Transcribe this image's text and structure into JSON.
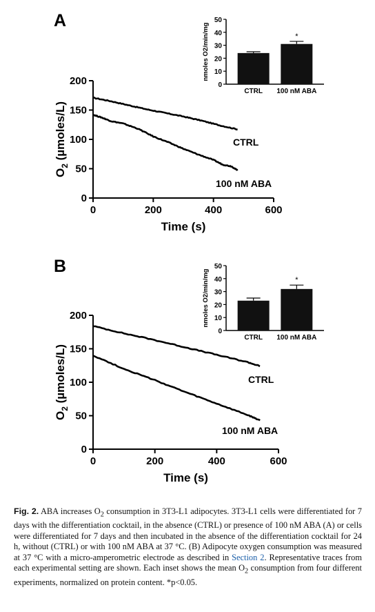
{
  "chart_data": [
    {
      "panel_label": "A",
      "type": "line",
      "xlabel": "Time (s)",
      "ylabel_base": "O",
      "ylabel_sub": "2",
      "ylabel_unit": " (µmoles/L)",
      "xlim": [
        0,
        600
      ],
      "ylim": [
        0,
        200
      ],
      "x_ticks": [
        "0",
        "200",
        "400",
        "600"
      ],
      "y_ticks": [
        "0",
        "50",
        "100",
        "150",
        "200"
      ],
      "series": [
        {
          "name": "CTRL",
          "x": [
            0,
            60,
            120,
            180,
            240,
            300,
            360,
            420,
            480
          ],
          "y": [
            171,
            165,
            158,
            151,
            145,
            139,
            132,
            124,
            117
          ]
        },
        {
          "name": "100 nM ABA",
          "x": [
            0,
            30,
            60,
            100,
            150,
            200,
            250,
            300,
            350,
            400,
            430,
            460,
            480
          ],
          "y": [
            142,
            137,
            131,
            127,
            118,
            105,
            95,
            84,
            74,
            65,
            57,
            54,
            47
          ]
        }
      ],
      "inset": {
        "type": "bar",
        "ylabel": "nmoles O2/min/mg",
        "ylim": [
          0,
          50
        ],
        "y_ticks": [
          "0",
          "10",
          "20",
          "30",
          "40",
          "50"
        ],
        "categories": [
          "CTRL",
          "100 nM ABA"
        ],
        "values": [
          24,
          31
        ],
        "errors": [
          1,
          2
        ],
        "significance": [
          "",
          "*"
        ]
      }
    },
    {
      "panel_label": "B",
      "type": "line",
      "xlabel": "Time (s)",
      "ylabel_base": "O",
      "ylabel_sub": "2",
      "ylabel_unit": " (µmoles/L)",
      "xlim": [
        0,
        600
      ],
      "ylim": [
        0,
        200
      ],
      "x_ticks": [
        "0",
        "200",
        "400",
        "600"
      ],
      "y_ticks": [
        "0",
        "50",
        "100",
        "150",
        "200"
      ],
      "series": [
        {
          "name": "CTRL",
          "x": [
            0,
            100,
            200,
            300,
            400,
            500,
            540
          ],
          "y": [
            184,
            173,
            163,
            152,
            141,
            130,
            124
          ]
        },
        {
          "name": "100 nM ABA",
          "x": [
            0,
            100,
            200,
            300,
            400,
            500,
            540
          ],
          "y": [
            140,
            120,
            103,
            85,
            68,
            51,
            43
          ]
        }
      ],
      "inset": {
        "type": "bar",
        "ylabel": "nmoles O2/min/mg",
        "ylim": [
          0,
          50
        ],
        "y_ticks": [
          "0",
          "10",
          "20",
          "30",
          "40",
          "50"
        ],
        "categories": [
          "CTRL",
          "100 nM ABA"
        ],
        "values": [
          23,
          32
        ],
        "errors": [
          2,
          3
        ],
        "significance": [
          "",
          "*"
        ]
      }
    }
  ],
  "caption": {
    "label": "Fig. 2.",
    "t1": " ABA increases O",
    "t1_sub": "2",
    "t2": " consumption in 3T3-L1 adipocytes. 3T3-L1 cells were differentiated for 7 days with the differentiation cocktail, in the absence (CTRL) or presence of 100 nM ABA (A) or cells were differentiated for 7 days and then incubated in the absence of the differentiation cocktail for 24 h, without (CTRL) or with 100 nM ABA at 37 °C. (B) Adipocyte oxygen consumption was measured at 37 °C with a micro-amperometric electrode as described in ",
    "link": "Section 2",
    "t3": ". Representative traces from each experimental setting are shown. Each inset shows the mean O",
    "t3_sub": "2",
    "t4": " consumption from four different experiments, normalized on protein content. *p<0.05."
  }
}
